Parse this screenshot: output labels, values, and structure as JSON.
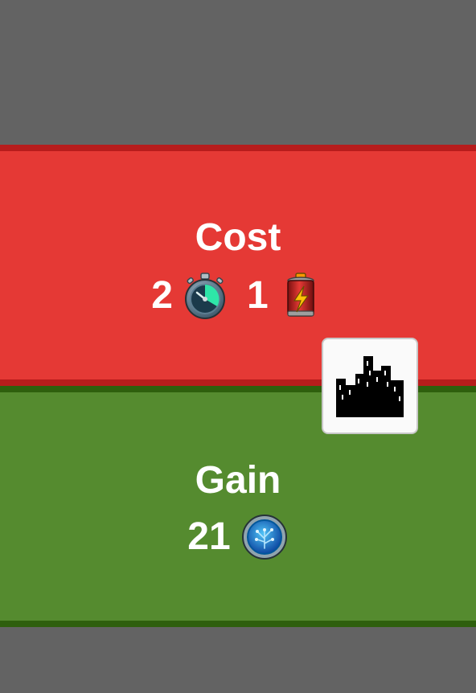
{
  "cost": {
    "title": "Cost",
    "time_amount": "2",
    "time_icon": "stopwatch-icon",
    "energy_amount": "1",
    "energy_icon": "battery-icon"
  },
  "gain": {
    "title": "Gain",
    "research_amount": "21",
    "research_icon": "research-orb-icon"
  },
  "card": {
    "icon": "city-skyline-icon"
  },
  "colors": {
    "background": "#636363",
    "cost_fill": "#e53935",
    "cost_border": "#b71c1c",
    "gain_fill": "#558b2f",
    "gain_border": "#2e5f0d"
  }
}
